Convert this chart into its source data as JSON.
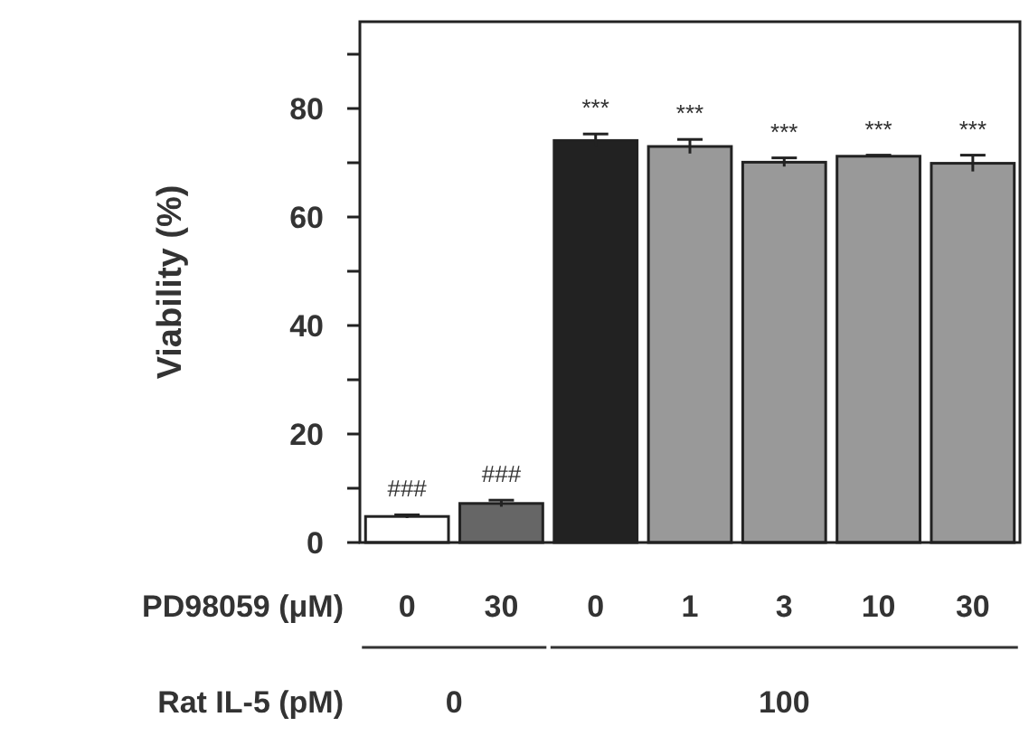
{
  "chart_data": {
    "type": "bar",
    "ylabel": "Viability (%)",
    "xlabel": "PD98059 (μM)",
    "categories": [
      "0",
      "30",
      "0",
      "1",
      "3",
      "10",
      "30"
    ],
    "values": [
      4.8,
      7.2,
      74.1,
      73.0,
      70.1,
      71.2,
      69.9
    ],
    "errors": [
      0.3,
      0.6,
      1.2,
      1.3,
      0.8,
      0.2,
      1.5
    ],
    "colors": [
      "#ffffff",
      "#666666",
      "#222222",
      "#999999",
      "#999999",
      "#999999",
      "#999999"
    ],
    "value_labels": [
      "###",
      "###",
      "***",
      "***",
      "***",
      "***",
      "***"
    ],
    "ylim": [
      0,
      96
    ],
    "yticks": [
      0,
      {
        "value": 10,
        "label": null
      },
      20,
      {
        "value": 30,
        "label": null
      },
      40,
      {
        "value": 50,
        "label": null
      },
      60,
      {
        "value": 70,
        "label": null
      },
      80,
      {
        "value": 90,
        "label": null
      }
    ],
    "annotations": [
      "Rat IL-5 (pM)",
      "0",
      "100"
    ]
  }
}
